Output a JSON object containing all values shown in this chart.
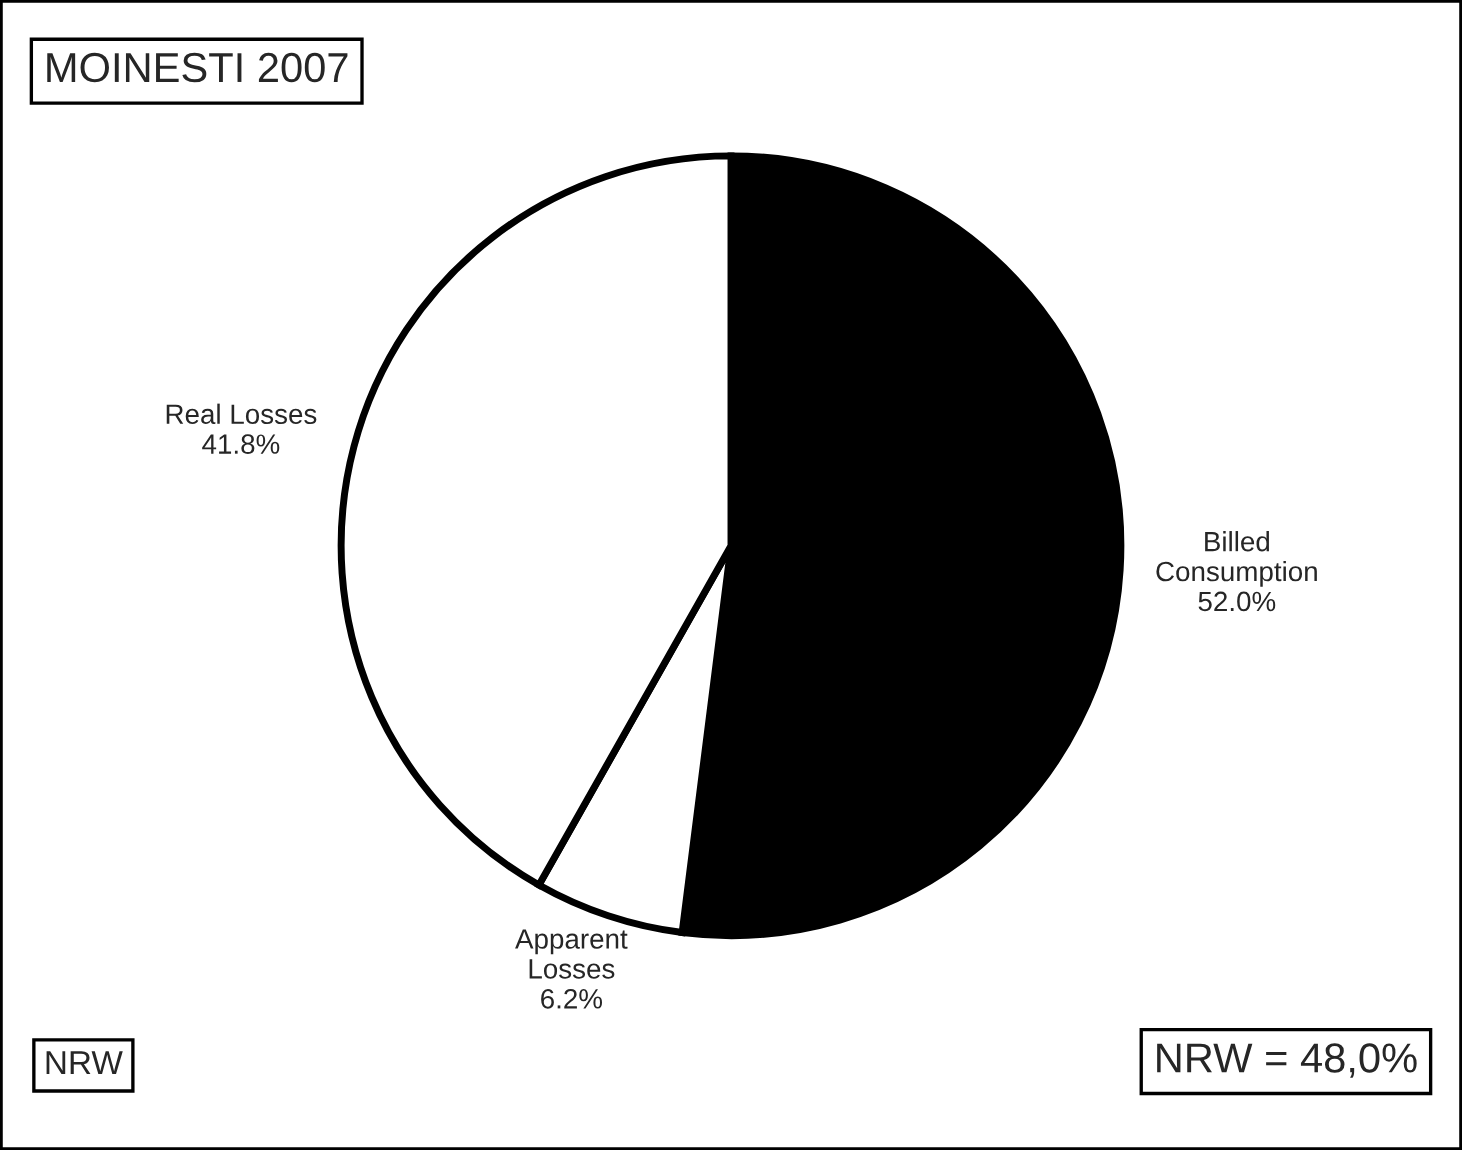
{
  "chart_data": {
    "type": "pie",
    "title": "MOINESTI 2007",
    "categories": [
      "Billed\nConsumption",
      "Apparent\nLosses",
      "Real Losses"
    ],
    "values": [
      52.0,
      6.2,
      41.8
    ],
    "colors": [
      "#000000",
      "#ffffff",
      "#ffffff"
    ],
    "value_labels": [
      "52.0%",
      "6.2%",
      "41.8%"
    ],
    "annotations": [
      "NRW",
      "NRW = 48,0%"
    ]
  }
}
